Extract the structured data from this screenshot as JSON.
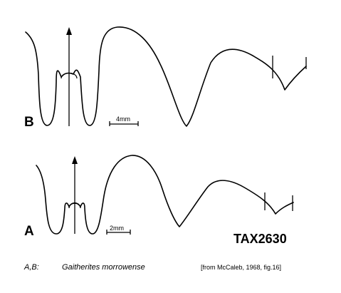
{
  "figure": {
    "suture_B": {
      "label": "B",
      "scale_label": "4mm"
    },
    "suture_A": {
      "label": "A",
      "scale_label": "2mm"
    },
    "taxon_id": "TAX2630",
    "caption": {
      "labels": "A,B:",
      "species": "Gaitherites  morrowense",
      "source": "[from McCaleb, 1968, fig.16]"
    }
  }
}
